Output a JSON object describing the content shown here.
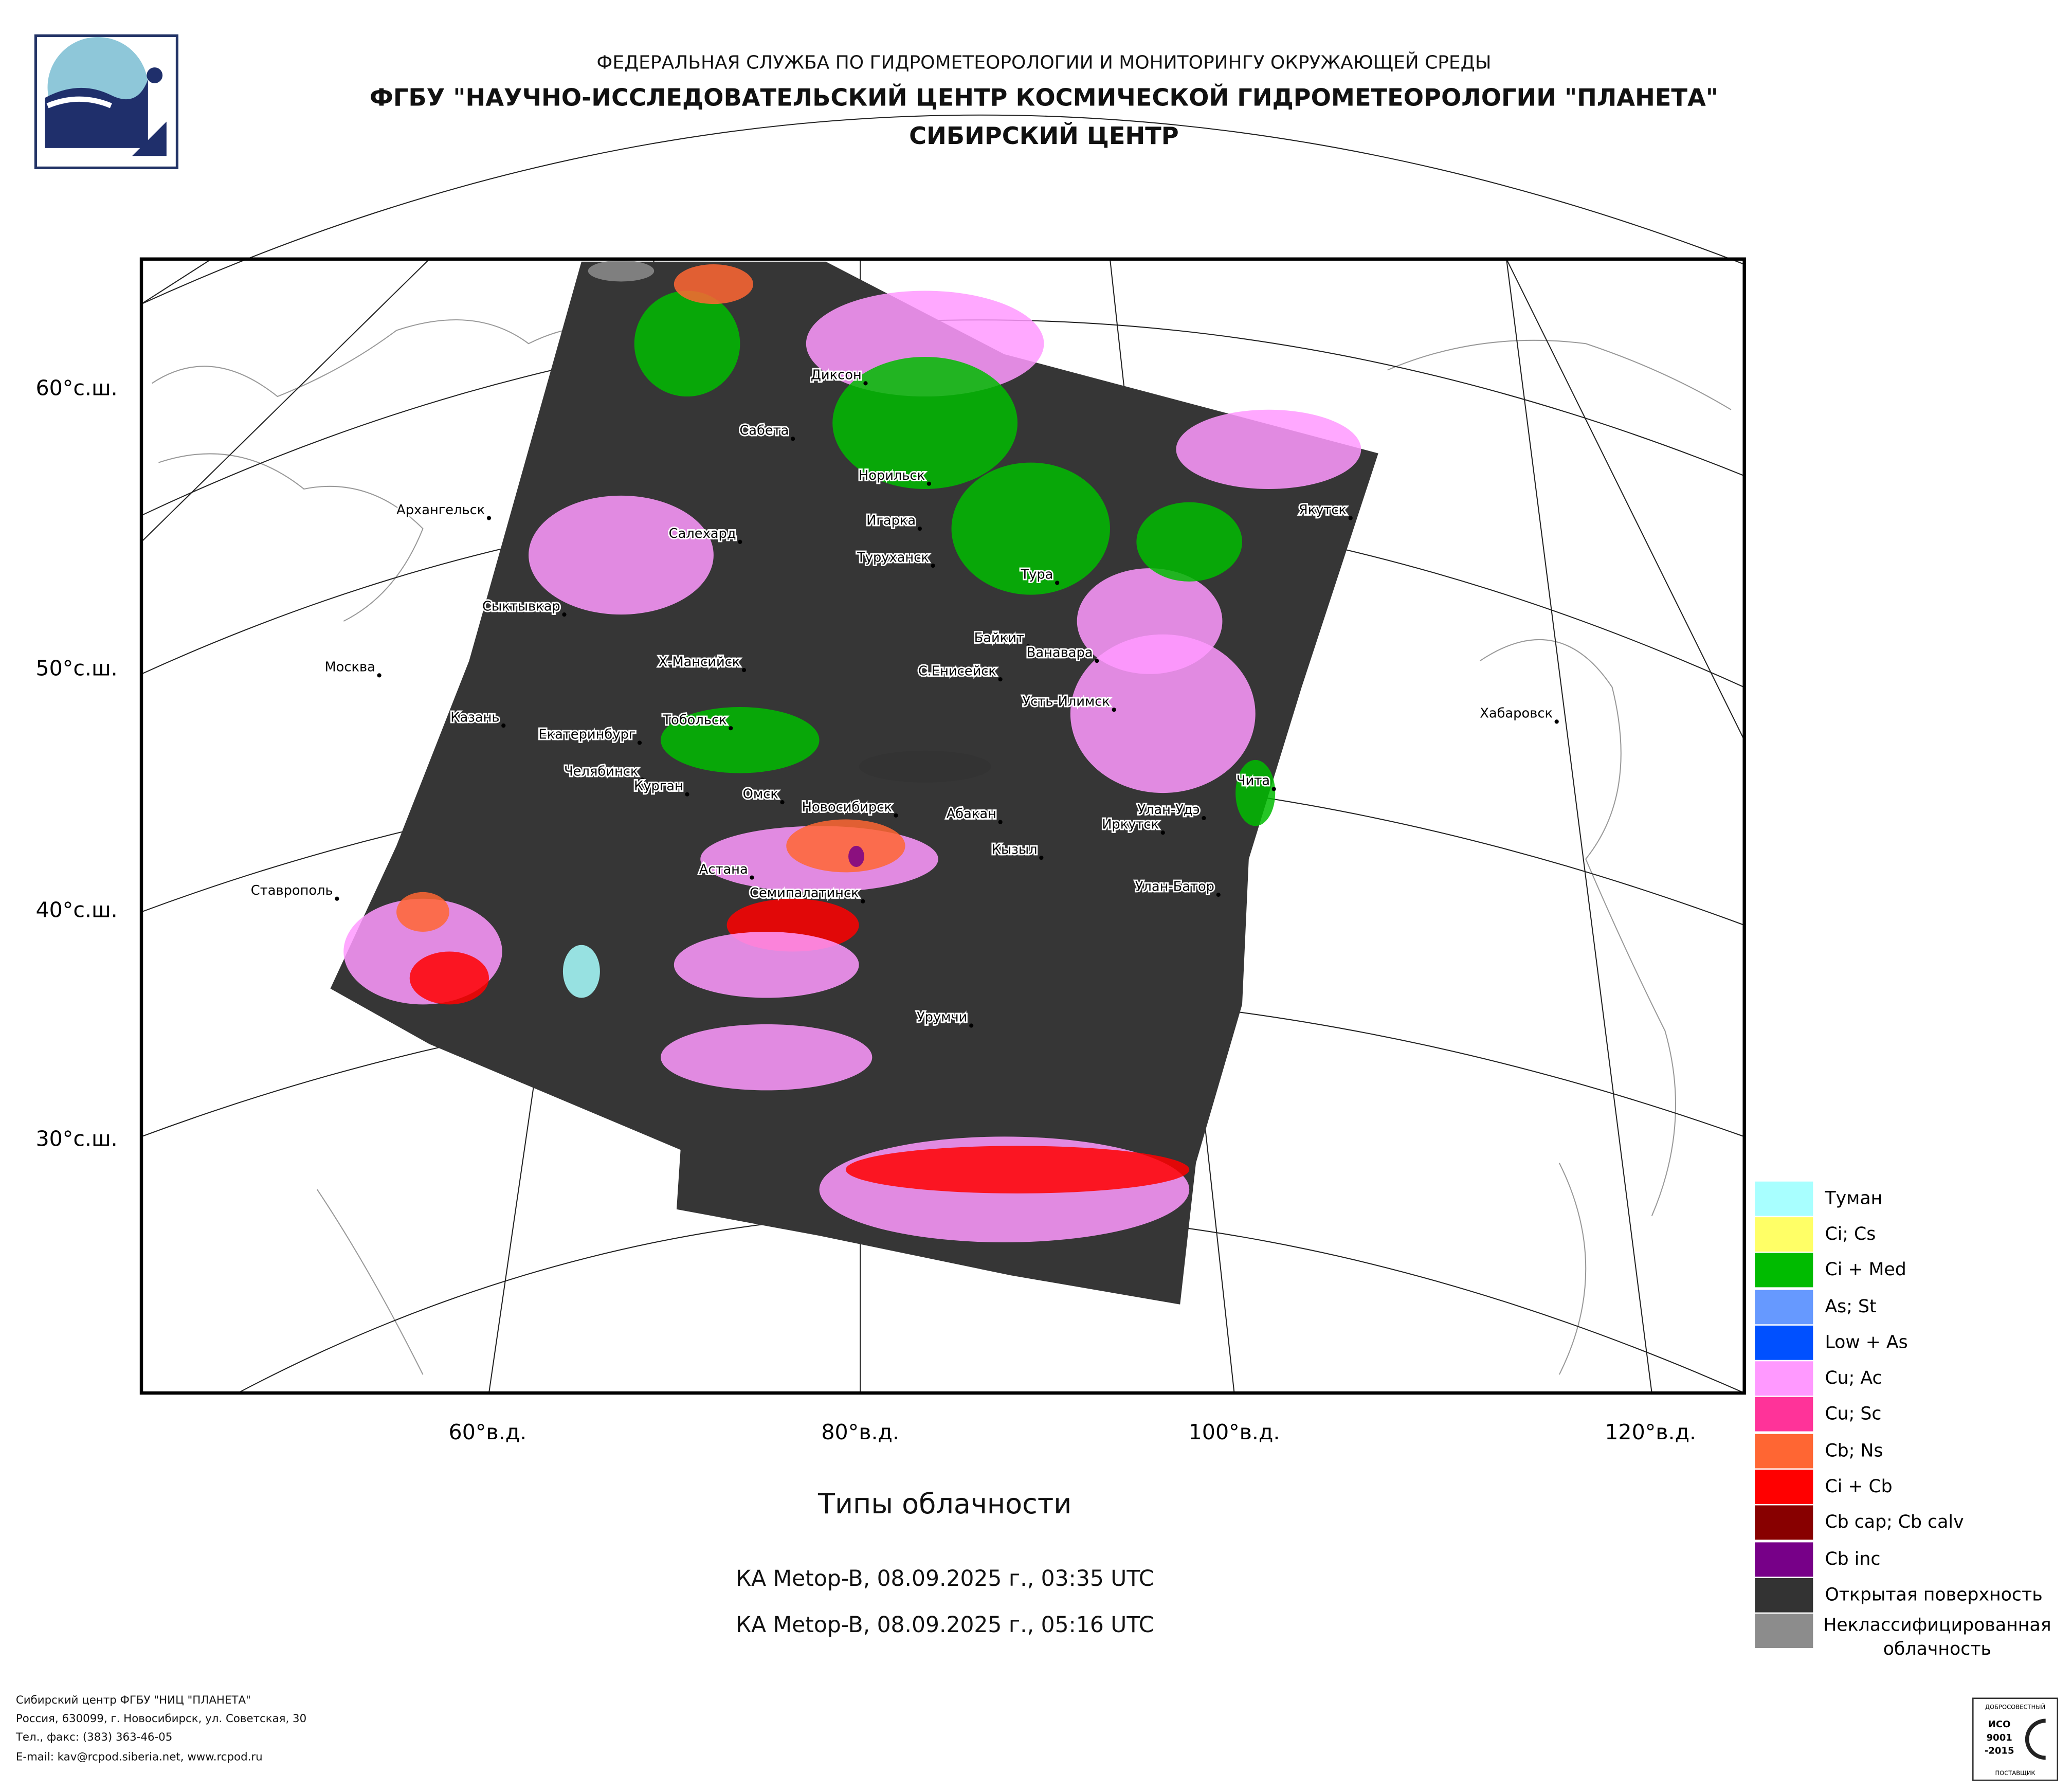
{
  "header": {
    "lines": [
      "ФЕДЕРАЛЬНАЯ СЛУЖБА ПО ГИДРОМЕТЕОРОЛОГИИ И МОНИТОРИНГУ ОКРУЖАЮЩЕЙ СРЕДЫ",
      "ФГБУ \"НАУЧНО-ИССЛЕДОВАТЕЛЬСКИЙ ЦЕНТР КОСМИЧЕСКОЙ ГИДРОМЕТЕОРОЛОГИИ \"ПЛАНЕТА\"",
      "СИБИРСКИЙ ЦЕНТР"
    ]
  },
  "map": {
    "lat_labels": [
      "60°с.ш.",
      "50°с.ш.",
      "40°с.ш.",
      "30°с.ш."
    ],
    "lon_labels": [
      "60°в.д.",
      "80°в.д.",
      "100°в.д.",
      "120°в.д."
    ],
    "cities": [
      "Диксон",
      "Сабета",
      "Норильск",
      "Архангельск",
      "Якутск",
      "Салехард",
      "Игарка",
      "Туруханск",
      "Тура",
      "Сыктывкар",
      "Байкит",
      "Ванавара",
      "Москва",
      "Х-Мансийск",
      "С.Енисейск",
      "Усть-Илимск",
      "Хабаровск",
      "Казань",
      "Тобольск",
      "Екатеринбург",
      "Челябинск",
      "Курган",
      "Чита",
      "Омск",
      "Новосибирск",
      "Улан-Удэ",
      "Абакан",
      "Иркутск",
      "Кызыл",
      "Астана",
      "Ставрополь",
      "Семипалатинск",
      "Улан-Батор",
      "Урумчи"
    ]
  },
  "legend": {
    "items": [
      {
        "name": "Туман",
        "color": "#a8ffff"
      },
      {
        "name": "Ci; Cs",
        "color": "#ffff66"
      },
      {
        "name": "Ci + Med",
        "color": "#00bb00"
      },
      {
        "name": "As; St",
        "color": "#6699ff"
      },
      {
        "name": "Low + As",
        "color": "#0050ff"
      },
      {
        "name": "Cu; Ac",
        "color": "#ff99ff"
      },
      {
        "name": "Cu; Sc",
        "color": "#ff3399"
      },
      {
        "name": "Cb; Ns",
        "color": "#ff6633"
      },
      {
        "name": "Ci + Cb",
        "color": "#ff0000"
      },
      {
        "name": "Cb cap; Cb calv",
        "color": "#880000"
      },
      {
        "name": "Cb inc",
        "color": "#770088"
      },
      {
        "name": "Открытая поверхность",
        "color": "#333333"
      },
      {
        "name": "Неклассифицированная облачность",
        "color": "#8c8c8c"
      }
    ]
  },
  "caption": {
    "title": "Типы облачности",
    "passes": [
      "КА Metop-B, 08.09.2025 г., 03:35 UTC",
      "КА Metop-B, 08.09.2025 г., 05:16 UTC"
    ]
  },
  "footer": {
    "lines": [
      "Сибирский центр ФГБУ \"НИЦ \"ПЛАНЕТА\"",
      "Россия, 630099, г. Новосибирск, ул. Советская, 30",
      "Тел., факс: (383) 363-46-05",
      "E-mail: kav@rcpod.siberia.net, www.rcpod.ru"
    ],
    "badge": [
      "ДОБРОСОВЕСТНЫЙ",
      "ИСО",
      "9001",
      "-2015",
      "ПОСТАВЩИК"
    ]
  }
}
